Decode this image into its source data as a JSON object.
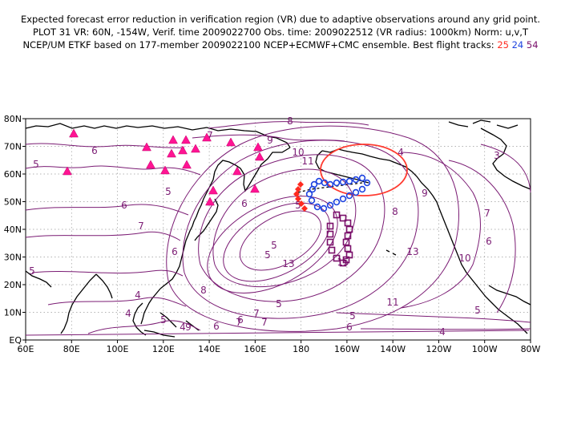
{
  "title": {
    "line1": "Expected forecast error reduction in verification region (VR) due to adaptive observations around any grid point.",
    "line2": "PLOT 31 VR: 60N, -154W, Verif. time 2009022700 Obs. time: 2009022512 (VR radius: 1000km) Norm: u,v,T",
    "line3_prefix": "NCEP/UM ETKF based on 177-member 2009022100 NCEP+ECMWF+CMC ensemble. Best flight tracks: ",
    "track_25": "25",
    "track_24": "24",
    "track_54": "54"
  },
  "axes": {
    "x_ticks": [
      "60E",
      "80E",
      "100E",
      "120E",
      "140E",
      "160E",
      "180",
      "160W",
      "140W",
      "120W",
      "100W",
      "80W"
    ],
    "y_ticks": [
      "EQ",
      "10N",
      "20N",
      "30N",
      "40N",
      "50N",
      "60N",
      "70N",
      "80N"
    ]
  },
  "contour_labels": [
    "8",
    "7",
    "9",
    "10",
    "11",
    "6",
    "5",
    "5",
    "6",
    "7",
    "6",
    "6",
    "5",
    "5",
    "5",
    "13",
    "15",
    "13",
    "11",
    "9",
    "8",
    "7",
    "6",
    "10",
    "9",
    "8",
    "7",
    "6",
    "7",
    "5",
    "4",
    "4",
    "5",
    "4",
    "6",
    "5",
    "7",
    "6",
    "5",
    "5",
    "4",
    "3",
    "4"
  ],
  "colors": {
    "contour": "#7b1c74",
    "coast": "#000000",
    "grid": "#9a9a9a",
    "verification_region": "#ff3b30",
    "sites": "#ff1493",
    "track_25": "#ff2a1f",
    "track_24": "#1f44e0",
    "track_54": "#7a0f6a"
  },
  "markers": {
    "sites": "magenta-triangle",
    "track_25": "red-diamond",
    "track_24": "blue-circle",
    "track_54": "purple-square"
  }
}
